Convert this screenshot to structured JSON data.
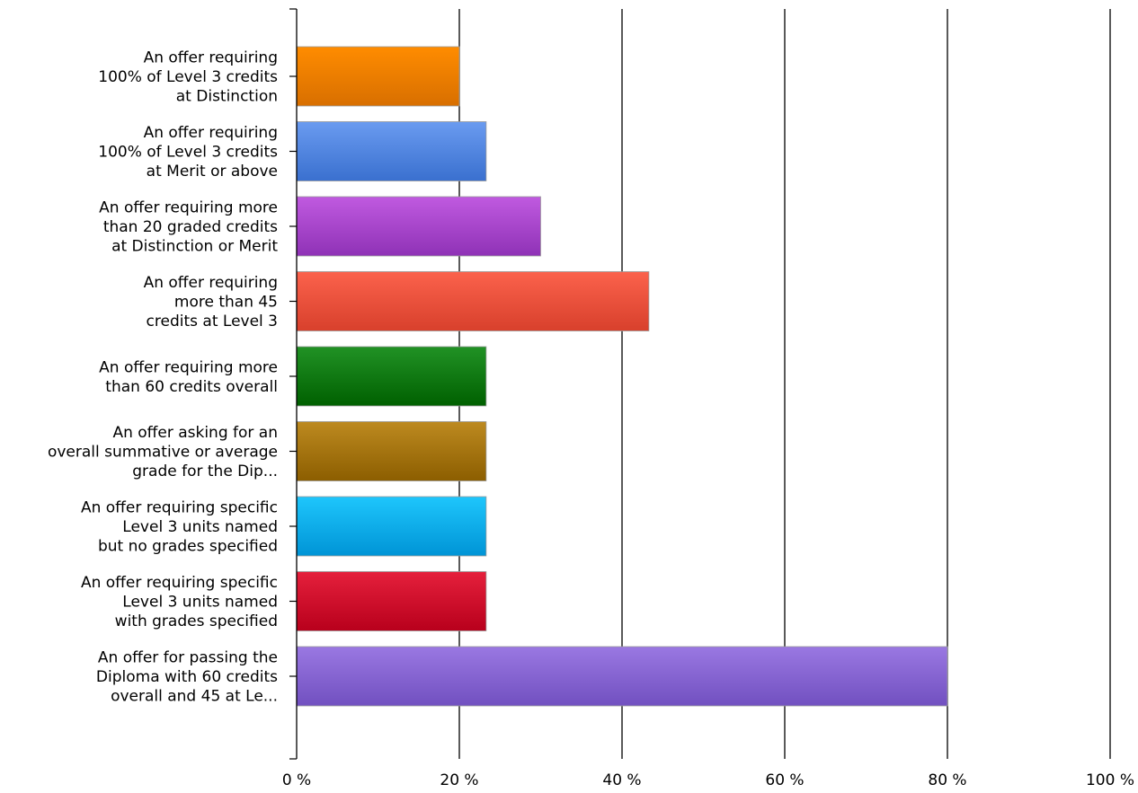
{
  "chart_data": {
    "type": "bar",
    "orientation": "horizontal",
    "title": "",
    "xlabel": "",
    "ylabel": "",
    "xlim": [
      0,
      100
    ],
    "x_tick_labels": [
      "0 %",
      "20 %",
      "40 %",
      "60 %",
      "80 %",
      "100 %"
    ],
    "grid": "vertical gridlines at each tick",
    "categories": [
      [
        "An offer requiring",
        "100% of Level 3 credits",
        "at Distinction"
      ],
      [
        "An offer requiring",
        "100% of Level 3 credits",
        "at Merit or above"
      ],
      [
        "An offer requiring more",
        "than 20 graded credits",
        "at Distinction or Merit"
      ],
      [
        "An offer requiring",
        "more than 45",
        "credits at Level 3"
      ],
      [
        "An offer requiring more",
        "than 60 credits overall"
      ],
      [
        "An offer asking for an",
        "overall summative or average",
        "grade for the Dip..."
      ],
      [
        "An offer requiring specific",
        "Level 3 units named",
        "but no grades specified"
      ],
      [
        "An offer requiring specific",
        "Level 3 units named",
        "with grades specified"
      ],
      [
        "An offer for passing the",
        "Diploma with 60 credits",
        "overall and 45 at Le..."
      ]
    ],
    "values": [
      20,
      23.3,
      30,
      43.3,
      23.3,
      23.3,
      23.3,
      23.3,
      80
    ],
    "colors": [
      [
        "#ff8c00",
        "#d86f00"
      ],
      [
        "#6a9bf0",
        "#3a70cf"
      ],
      [
        "#c05ae0",
        "#8f32b6"
      ],
      [
        "#fb624c",
        "#d8402c"
      ],
      [
        "#219225",
        "#006000"
      ],
      [
        "#bd8a20",
        "#8c5e00"
      ],
      [
        "#1ec6fc",
        "#0094d6"
      ],
      [
        "#e5203c",
        "#b8001c"
      ],
      [
        "#9a78e2",
        "#7150c0"
      ]
    ]
  }
}
